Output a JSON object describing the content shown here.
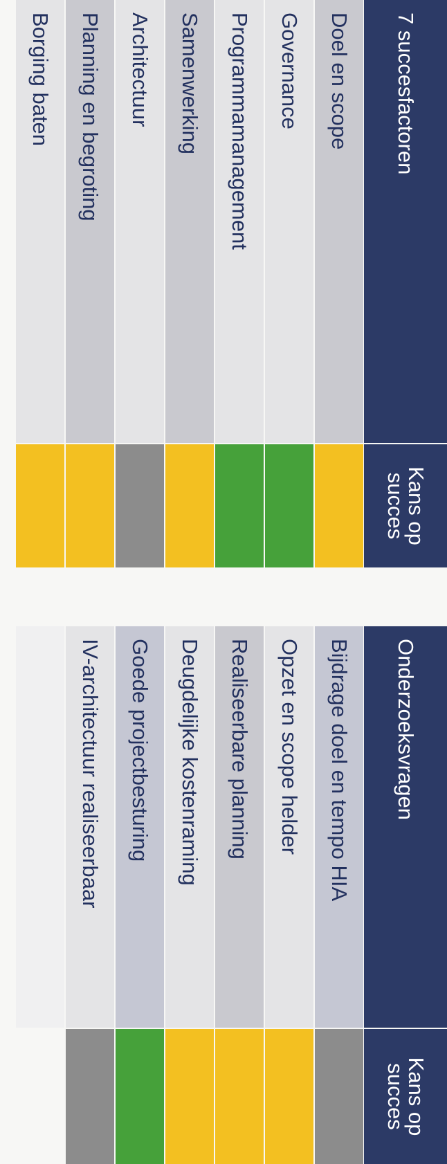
{
  "table_left": {
    "header": {
      "label": "7 succesfactoren",
      "status_line1": "Kans op",
      "status_line2": "succes"
    },
    "rows": [
      {
        "label": "Doel en scope",
        "status": "yellow"
      },
      {
        "label": "Governance",
        "status": "green"
      },
      {
        "label": "Programmamanagement",
        "status": "green"
      },
      {
        "label": "Samenwerking",
        "status": "yellow"
      },
      {
        "label": "Architectuur",
        "status": "gray"
      },
      {
        "label": "Planning en begroting",
        "status": "yellow"
      },
      {
        "label": "Borging baten",
        "status": "yellow"
      }
    ]
  },
  "table_right": {
    "header": {
      "label": "Onderzoeksvragen",
      "status_line1": "Kans op",
      "status_line2": "succes"
    },
    "rows": [
      {
        "label": "Bijdrage doel en tempo HIA",
        "status": "gray"
      },
      {
        "label": "Opzet en scope helder",
        "status": "yellow"
      },
      {
        "label": "Realiseerbare planning",
        "status": "yellow"
      },
      {
        "label": "Deugdelijke kostenraming",
        "status": "yellow"
      },
      {
        "label": "Goede projectbesturing",
        "status": "green"
      },
      {
        "label": "IV-architectuur realiseerbaar",
        "status": "gray"
      },
      {
        "label": "",
        "status": "empty"
      }
    ]
  },
  "status_colors": {
    "yellow": "#f3c021",
    "green": "#46a13a",
    "gray": "#8c8c8c"
  }
}
